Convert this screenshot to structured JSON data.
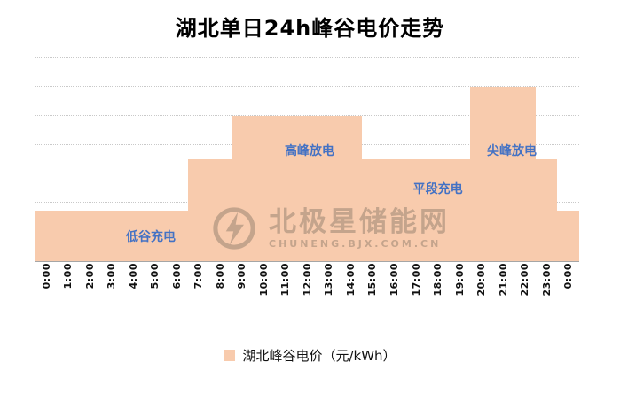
{
  "title": "湖北单日24h峰谷电价走势",
  "watermark": {
    "name": "北极星储能网",
    "url": "CHUNENG.BJX.COM.CN"
  },
  "legend": {
    "label": "湖北峰谷电价（元/kWh）",
    "swatch_color": "#F8CBAD"
  },
  "annotations": [
    {
      "text": "低谷充电",
      "hour_index": 4.8,
      "y_value": 0.17
    },
    {
      "text": "高峰放电",
      "hour_index": 12.1,
      "y_value": 0.76
    },
    {
      "text": "平段充电",
      "hour_index": 18.0,
      "y_value": 0.5
    },
    {
      "text": "尖峰放电",
      "hour_index": 21.4,
      "y_value": 0.76
    }
  ],
  "chart_data": {
    "type": "bar",
    "title": "湖北单日24h峰谷电价走势",
    "series_name": "湖北峰谷电价（元/kWh）",
    "bar_color": "#F8CBAD",
    "categories": [
      "0:00",
      "1:00",
      "2:00",
      "3:00",
      "4:00",
      "5:00",
      "6:00",
      "7:00",
      "8:00",
      "9:00",
      "10:00",
      "11:00",
      "12:00",
      "13:00",
      "14:00",
      "15:00",
      "16:00",
      "17:00",
      "18:00",
      "19:00",
      "20:00",
      "21:00",
      "22:00",
      "23:00",
      "0:00"
    ],
    "values": [
      0.35,
      0.35,
      0.35,
      0.35,
      0.35,
      0.35,
      0.35,
      0.7,
      0.7,
      1.0,
      1.0,
      1.0,
      1.0,
      1.0,
      1.0,
      0.7,
      0.7,
      0.7,
      0.7,
      0.7,
      1.2,
      1.2,
      1.2,
      0.7,
      0.35
    ],
    "xlabel": "",
    "ylabel": "",
    "ylim": [
      0,
      1.4
    ],
    "gridline_step": 0.2,
    "grid": "dotted-horizontal",
    "y_axis_labels_visible": false,
    "legend_position": "bottom",
    "segments": [
      {
        "label": "低谷充电",
        "hours": "0:00-6:00",
        "value": 0.35
      },
      {
        "label": "平段充电",
        "hours": "7:00-8:00",
        "value": 0.7
      },
      {
        "label": "高峰放电",
        "hours": "9:00-14:00",
        "value": 1.0
      },
      {
        "label": "平段充电",
        "hours": "15:00-19:00",
        "value": 0.7
      },
      {
        "label": "尖峰放电",
        "hours": "20:00-22:00",
        "value": 1.2
      },
      {
        "label": "平段充电",
        "hours": "23:00",
        "value": 0.7
      },
      {
        "label": "低谷充电",
        "hours": "0:00",
        "value": 0.35
      }
    ]
  }
}
